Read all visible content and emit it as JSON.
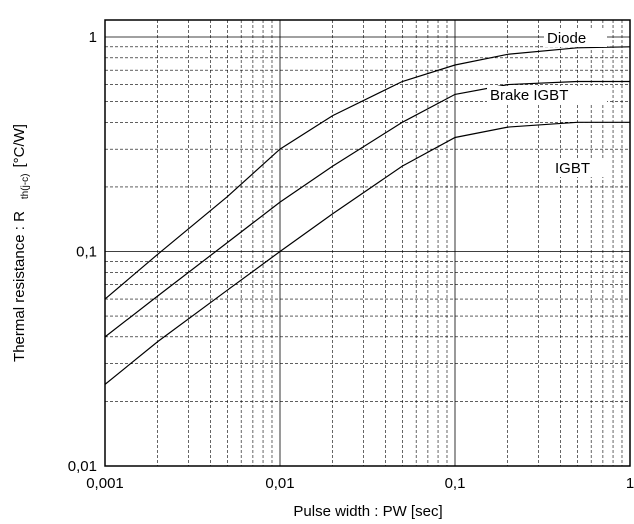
{
  "chart_data": {
    "type": "line",
    "x_label": "Pulse width : PW [sec]",
    "y_label": "Thermal resistance : R",
    "y_label_sub": "th(j-c)",
    "y_label_unit": "[°C/W]",
    "x": [
      0.001,
      0.002,
      0.005,
      0.01,
      0.02,
      0.05,
      0.1,
      0.2,
      0.5,
      1
    ],
    "series": [
      {
        "name": "Diode",
        "color": "#000000",
        "values": [
          0.06,
          0.097,
          0.18,
          0.3,
          0.43,
          0.62,
          0.74,
          0.83,
          0.89,
          0.9
        ]
      },
      {
        "name": "Brake IGBT",
        "color": "#000000",
        "values": [
          0.04,
          0.062,
          0.11,
          0.17,
          0.25,
          0.4,
          0.54,
          0.6,
          0.62,
          0.62
        ]
      },
      {
        "name": "IGBT",
        "color": "#000000",
        "values": [
          0.024,
          0.038,
          0.066,
          0.1,
          0.15,
          0.25,
          0.34,
          0.38,
          0.4,
          0.4
        ]
      }
    ],
    "xlim": [
      0.001,
      1
    ],
    "ylim": [
      0.01,
      1.2
    ],
    "xticks": [
      {
        "value": 0.001,
        "label": "0,001"
      },
      {
        "value": 0.01,
        "label": "0,01"
      },
      {
        "value": 0.1,
        "label": "0,1"
      },
      1
    ],
    "yticks": [
      {
        "value": 0.01,
        "label": "0,01"
      },
      {
        "value": 0.1,
        "label": "0,1"
      },
      1
    ],
    "xscale": "log",
    "yscale": "log",
    "grid": true,
    "minor_grid": true
  }
}
